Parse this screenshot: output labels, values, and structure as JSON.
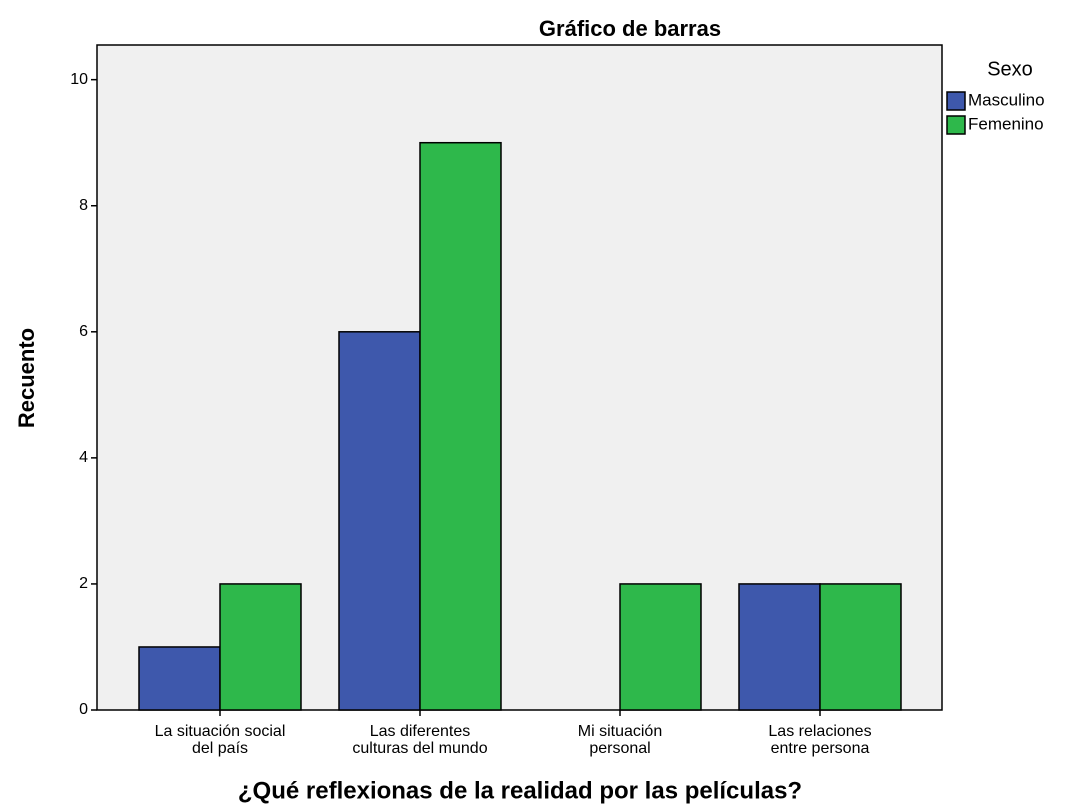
{
  "chart_data": {
    "type": "bar",
    "title": "Gráfico de barras",
    "x_label": "¿Qué reflexionas de la realidad por las películas?",
    "y_label": "Recuento",
    "legend_title": "Sexo",
    "categories": [
      "La situación social\ndel país",
      "Las diferentes\nculturas del mundo",
      "Mi situación\npersonal",
      "Las relaciones\nentre persona"
    ],
    "series": [
      {
        "name": "Masculino",
        "color": "#3e58ac",
        "values": [
          1,
          6,
          0,
          2
        ]
      },
      {
        "name": "Femenino",
        "color": "#2eb84b",
        "values": [
          2,
          9,
          2,
          2
        ]
      }
    ],
    "ylim": [
      0,
      10.55
    ],
    "yticks": [
      0,
      2,
      4,
      6,
      8,
      10
    ],
    "grid": false,
    "legend": "right"
  }
}
